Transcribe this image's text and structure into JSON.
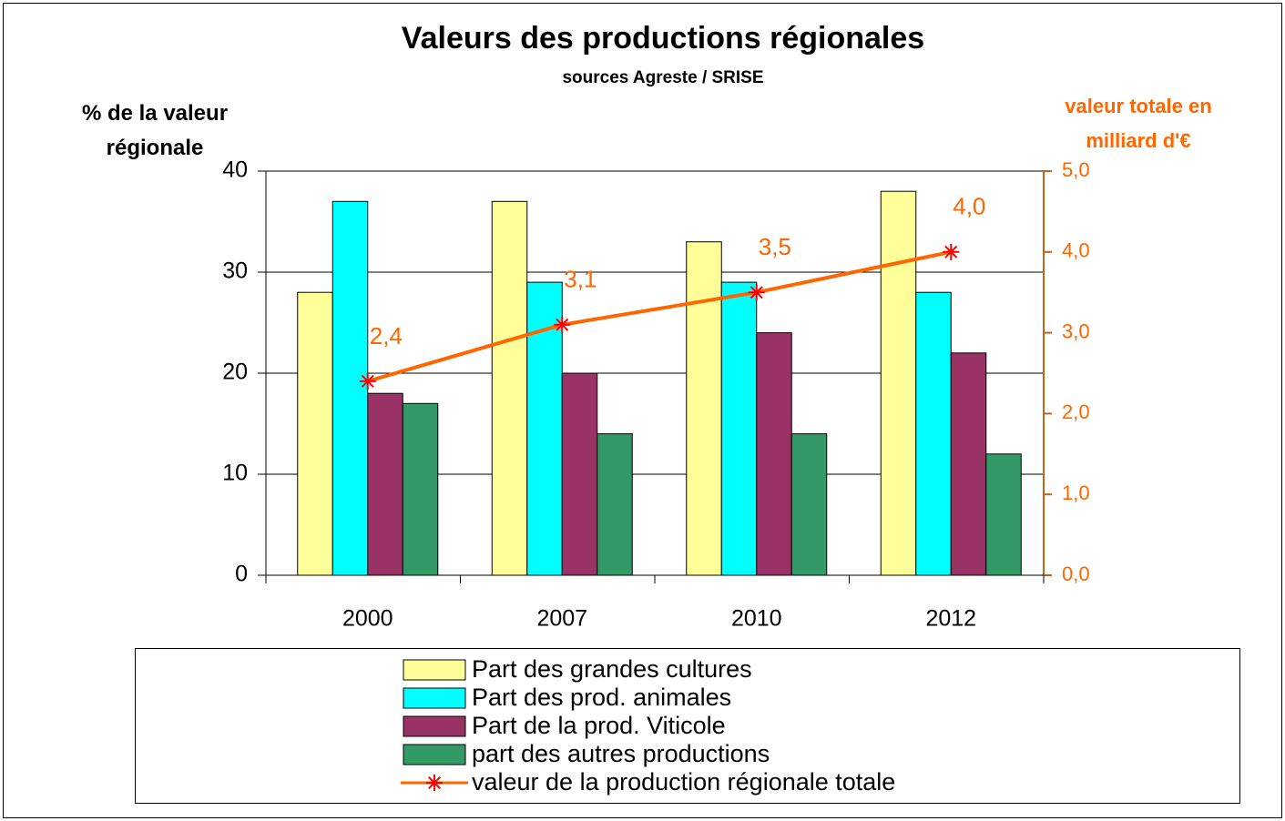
{
  "chart_data": {
    "type": "bar_line",
    "title": "Valeurs des productions régionales",
    "subtitle": "sources Agreste / SRISE",
    "y_label": "% de la valeur régionale",
    "y2_label": "valeur totale en milliard d'€",
    "categories": [
      "2000",
      "2007",
      "2010",
      "2012"
    ],
    "ylim": [
      0,
      40
    ],
    "yticks": [
      0,
      10,
      20,
      30,
      40
    ],
    "y2lim": [
      0,
      5
    ],
    "y2ticks": [
      {
        "value": 0,
        "label": "0,0"
      },
      {
        "value": 1,
        "label": "1,0"
      },
      {
        "value": 2,
        "label": "2,0"
      },
      {
        "value": 3,
        "label": "3,0"
      },
      {
        "value": 4,
        "label": "4,0"
      },
      {
        "value": 5,
        "label": "5,0"
      }
    ],
    "grid": true,
    "series": [
      {
        "name": "Part  des grandes cultures",
        "type": "bar",
        "color": "#ffff99",
        "values": [
          28,
          37,
          33,
          38
        ]
      },
      {
        "name": "Part des prod. animales",
        "type": "bar",
        "color": "#00ffff",
        "values": [
          37,
          29,
          29,
          28
        ]
      },
      {
        "name": "Part  de la prod. Viticole",
        "type": "bar",
        "color": "#993366",
        "values": [
          18,
          20,
          24,
          22
        ]
      },
      {
        "name": "part des autres productions",
        "type": "bar",
        "color": "#339966",
        "values": [
          17,
          14,
          14,
          12
        ]
      },
      {
        "name": "valeur de la production régionale totale",
        "type": "line",
        "axis": "y2",
        "color": "#ff6600",
        "marker_color": "#ff0000",
        "values": [
          2.4,
          3.1,
          3.5,
          4.0
        ],
        "value_labels": [
          "2,4",
          "3,1",
          "3,5",
          "4,0"
        ]
      }
    ]
  }
}
